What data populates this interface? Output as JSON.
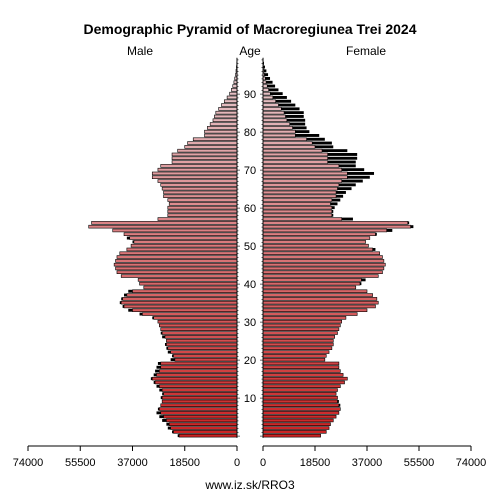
{
  "chart_data": {
    "type": "bar",
    "orientation": "horizontal-pyramid",
    "title": "Demographic Pyramid of Macroregiunea Trei 2024",
    "left_label": "Male",
    "center_label": "Age",
    "right_label": "Female",
    "footer": "www.iz.sk/RRO3",
    "age_ticks": [
      10,
      20,
      30,
      40,
      50,
      60,
      70,
      80,
      90
    ],
    "x_ticks_left": [
      "74000",
      "55500",
      "37000",
      "18500",
      "0"
    ],
    "x_ticks_right": [
      "0",
      "18500",
      "37000",
      "55500",
      "74000"
    ],
    "xlim": [
      0,
      74000
    ],
    "ylim": [
      0,
      100
    ],
    "colors": {
      "male_young": "#cc2222",
      "female_young": "#cc2222",
      "old": "#e6c8cc",
      "excess": "#000000",
      "outline": "#000000"
    },
    "ages": [
      0,
      1,
      2,
      3,
      4,
      5,
      6,
      7,
      8,
      9,
      10,
      11,
      12,
      13,
      14,
      15,
      16,
      17,
      18,
      19,
      20,
      21,
      22,
      23,
      24,
      25,
      26,
      27,
      28,
      29,
      30,
      31,
      32,
      33,
      34,
      35,
      36,
      37,
      38,
      39,
      40,
      41,
      42,
      43,
      44,
      45,
      46,
      47,
      48,
      49,
      50,
      51,
      52,
      53,
      54,
      55,
      56,
      57,
      58,
      59,
      60,
      61,
      62,
      63,
      64,
      65,
      66,
      67,
      68,
      69,
      70,
      71,
      72,
      73,
      74,
      75,
      76,
      77,
      78,
      79,
      80,
      81,
      82,
      83,
      84,
      85,
      86,
      87,
      88,
      89,
      90,
      91,
      92,
      93,
      94,
      95,
      96,
      97,
      98,
      99
    ],
    "male": [
      21000,
      23000,
      24500,
      25000,
      26500,
      27500,
      28500,
      28000,
      27000,
      26500,
      27000,
      26500,
      27500,
      28500,
      29500,
      30500,
      29500,
      29000,
      28500,
      28000,
      23500,
      23000,
      24500,
      25000,
      25500,
      25000,
      26500,
      27000,
      27000,
      27500,
      28000,
      30000,
      34500,
      38500,
      40500,
      41500,
      41000,
      40000,
      38500,
      33000,
      34500,
      35000,
      41000,
      42500,
      43000,
      43500,
      43000,
      42500,
      41500,
      39000,
      37500,
      37000,
      39000,
      40000,
      44000,
      52500,
      51500,
      28000,
      24500,
      24500,
      24500,
      24000,
      24500,
      26000,
      26000,
      26500,
      27000,
      28000,
      30000,
      30000,
      28000,
      27000,
      23000,
      23000,
      23000,
      21000,
      18500,
      17500,
      15500,
      11500,
      11500,
      10500,
      9500,
      8500,
      8000,
      7500,
      6500,
      5500,
      4500,
      3500,
      2600,
      2000,
      1500,
      1100,
      800,
      500,
      350,
      200,
      100,
      50
    ],
    "female": [
      20500,
      22500,
      23500,
      24000,
      25000,
      26000,
      27000,
      27500,
      27500,
      27000,
      26500,
      26000,
      26500,
      27500,
      29000,
      30000,
      28500,
      27500,
      27000,
      27000,
      22000,
      22500,
      23500,
      24500,
      25000,
      25000,
      25500,
      26500,
      27000,
      27500,
      28000,
      29500,
      33500,
      37000,
      40000,
      41000,
      40500,
      39000,
      37000,
      33000,
      35000,
      36500,
      41000,
      42500,
      43000,
      43500,
      43000,
      42500,
      41500,
      40000,
      37500,
      36500,
      38000,
      40500,
      46000,
      53500,
      52000,
      32000,
      25000,
      25000,
      25500,
      26500,
      27500,
      28500,
      29500,
      31500,
      33000,
      35500,
      38000,
      39500,
      36000,
      33000,
      33000,
      33500,
      33500,
      30000,
      25000,
      24500,
      22000,
      20000,
      16500,
      15500,
      15000,
      15000,
      14500,
      14500,
      13000,
      11500,
      10000,
      8500,
      7000,
      5500,
      4300,
      3400,
      2500,
      1800,
      1200,
      700,
      350,
      150
    ]
  }
}
